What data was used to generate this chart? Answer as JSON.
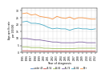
{
  "years": [
    1995,
    1996,
    1997,
    1998,
    1999,
    2000,
    2001,
    2002,
    2003,
    2004,
    2005,
    2006,
    2007,
    2008,
    2009,
    2010,
    2011,
    2012
  ],
  "series_order": [
    "85+",
    "75-84",
    "65-74",
    "55-64",
    "45-54",
    "<45"
  ],
  "series": {
    "85+": [
      28.0,
      28.5,
      27.0,
      27.5,
      26.0,
      25.5,
      25.0,
      24.0,
      26.0,
      25.0,
      24.5,
      25.5,
      24.0,
      25.0,
      25.0,
      24.5,
      24.0,
      24.0
    ],
    "75-84": [
      22.0,
      22.5,
      21.0,
      21.0,
      20.5,
      19.5,
      18.0,
      17.0,
      17.5,
      17.0,
      17.0,
      16.0,
      17.0,
      17.5,
      17.0,
      17.0,
      16.5,
      17.0
    ],
    "65-74": [
      10.0,
      10.0,
      9.5,
      9.0,
      9.0,
      8.5,
      8.0,
      7.5,
      7.5,
      7.0,
      7.0,
      7.0,
      7.0,
      7.5,
      7.5,
      7.0,
      7.0,
      7.0
    ],
    "55-64": [
      4.0,
      4.0,
      3.5,
      3.5,
      3.5,
      3.0,
      3.0,
      2.8,
      2.8,
      2.8,
      2.8,
      2.8,
      2.8,
      3.0,
      3.0,
      3.0,
      3.0,
      3.0
    ],
    "45-54": [
      1.2,
      1.2,
      1.1,
      1.1,
      1.1,
      1.0,
      1.0,
      1.0,
      0.9,
      0.9,
      0.9,
      0.9,
      0.9,
      0.9,
      0.9,
      0.9,
      0.9,
      0.9
    ],
    "<45": [
      0.2,
      0.2,
      0.2,
      0.2,
      0.2,
      0.2,
      0.2,
      0.2,
      0.2,
      0.2,
      0.2,
      0.2,
      0.2,
      0.2,
      0.2,
      0.2,
      0.2,
      0.2
    ]
  },
  "colors": {
    "85+": "#f79646",
    "75-84": "#4bacc6",
    "65-74": "#8064a2",
    "55-64": "#9bbb59",
    "45-54": "#c0504d",
    "<45": "#4f81bd"
  },
  "xlabel": "Year of diagnosis",
  "ylabel": "Age-specific rate\nper 100,000",
  "ylim": [
    0,
    32
  ],
  "yticks": [
    0,
    5,
    10,
    15,
    20,
    25,
    30
  ],
  "background_color": "#ffffff",
  "grid": true,
  "legend_labels": [
    "under 45",
    "45-54",
    "55-64",
    "65-74",
    "75-84",
    "85+"
  ]
}
